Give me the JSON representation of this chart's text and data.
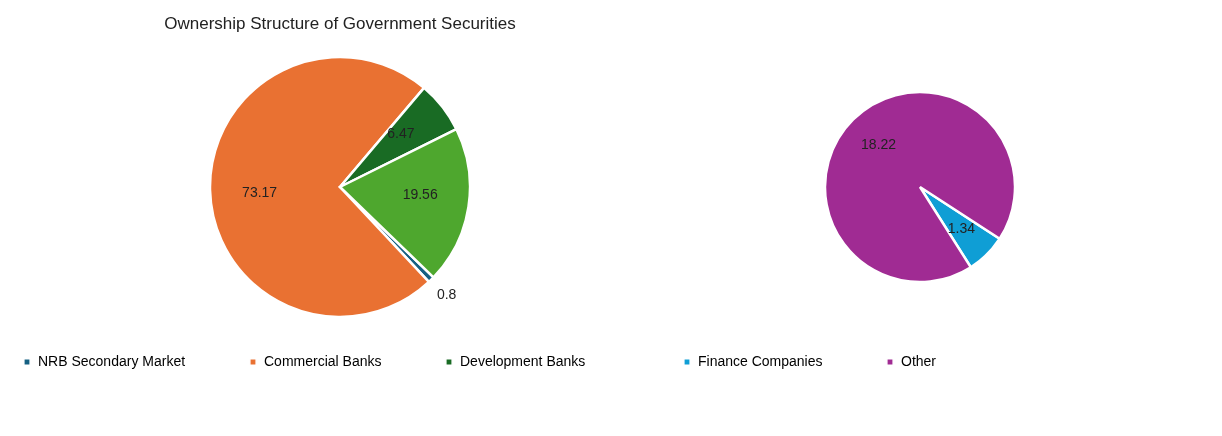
{
  "chart_data": [
    {
      "type": "pie",
      "title": "Ownership Structure of Government Securities",
      "categories": [
        "NRB Secondary Market",
        "Commercial Banks",
        "Development Banks",
        null
      ],
      "values": [
        0.8,
        73.17,
        6.47,
        19.56
      ],
      "colors": [
        "#156082",
        "#e97132",
        "#196b24",
        "#4ea72e"
      ],
      "data_labels": true,
      "legend": "bottom"
    },
    {
      "type": "pie",
      "categories": [
        "Finance Companies",
        "Other"
      ],
      "values": [
        1.34,
        18.22
      ],
      "colors": [
        "#0f9ed5",
        "#a02b93"
      ],
      "data_labels": true,
      "legend": "bottom"
    }
  ]
}
